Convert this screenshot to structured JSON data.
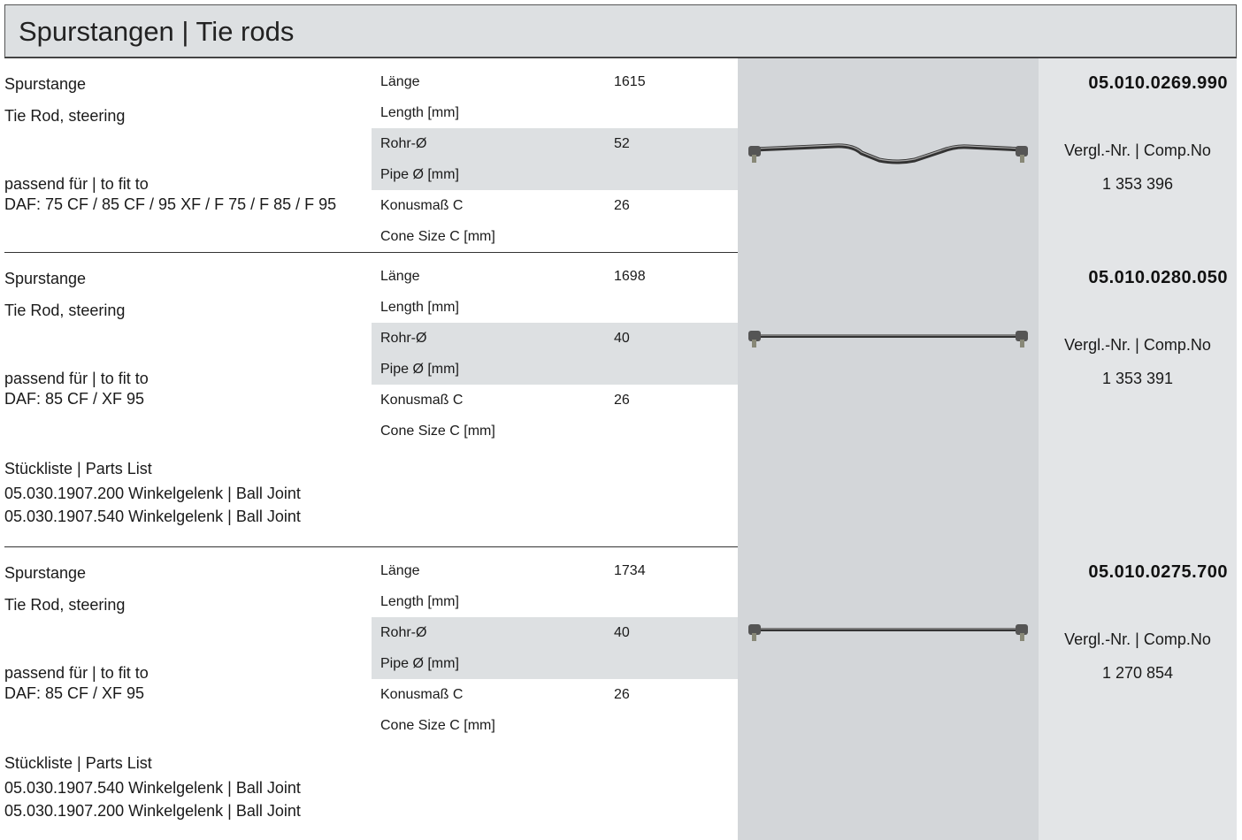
{
  "header": {
    "title": "Spurstangen | Tie rods"
  },
  "items": [
    {
      "name": "Spurstange",
      "name_en": "Tie Rod, steering",
      "fit_label": "passend für | to fit to",
      "fit": "DAF: 75 CF / 85 CF / 95 XF / F 75 / F 85 / F 95",
      "specs": [
        {
          "label": "Länge",
          "label_en": "Length [mm]",
          "value": 1615
        },
        {
          "label": "Rohr-Ø",
          "label_en": "Pipe Ø [mm]",
          "value": 52
        },
        {
          "label": "Konusmaß C",
          "label_en": "Cone Size C [mm]",
          "value": 26
        }
      ],
      "part_number": "05.010.0269.990",
      "comp_label": "Vergl.-Nr. | Comp.No",
      "comp_no": "1 353 396"
    },
    {
      "name": "Spurstange",
      "name_en": "Tie Rod, steering",
      "fit_label": "passend für | to fit to",
      "fit": "DAF: 85 CF / XF 95",
      "parts_list_label": "Stückliste | Parts List",
      "parts": [
        "05.030.1907.200 Winkelgelenk | Ball Joint",
        "05.030.1907.540 Winkelgelenk | Ball Joint"
      ],
      "specs": [
        {
          "label": "Länge",
          "label_en": "Length [mm]",
          "value": 1698
        },
        {
          "label": "Rohr-Ø",
          "label_en": "Pipe Ø [mm]",
          "value": 40
        },
        {
          "label": "Konusmaß C",
          "label_en": "Cone Size C [mm]",
          "value": 26
        }
      ],
      "part_number": "05.010.0280.050",
      "comp_label": "Vergl.-Nr. | Comp.No",
      "comp_no": "1 353 391"
    },
    {
      "name": "Spurstange",
      "name_en": "Tie Rod, steering",
      "fit_label": "passend für | to fit to",
      "fit": "DAF: 85 CF / XF 95",
      "parts_list_label": "Stückliste | Parts List",
      "parts": [
        "05.030.1907.540 Winkelgelenk | Ball Joint",
        "05.030.1907.200 Winkelgelenk | Ball Joint"
      ],
      "specs": [
        {
          "label": "Länge",
          "label_en": "Length [mm]",
          "value": 1734
        },
        {
          "label": "Rohr-Ø",
          "label_en": "Pipe Ø [mm]",
          "value": 40
        },
        {
          "label": "Konusmaß C",
          "label_en": "Cone Size C [mm]",
          "value": 26
        }
      ],
      "part_number": "05.010.0275.700",
      "comp_label": "Vergl.-Nr. | Comp.No",
      "comp_no": "1 270 854"
    }
  ]
}
